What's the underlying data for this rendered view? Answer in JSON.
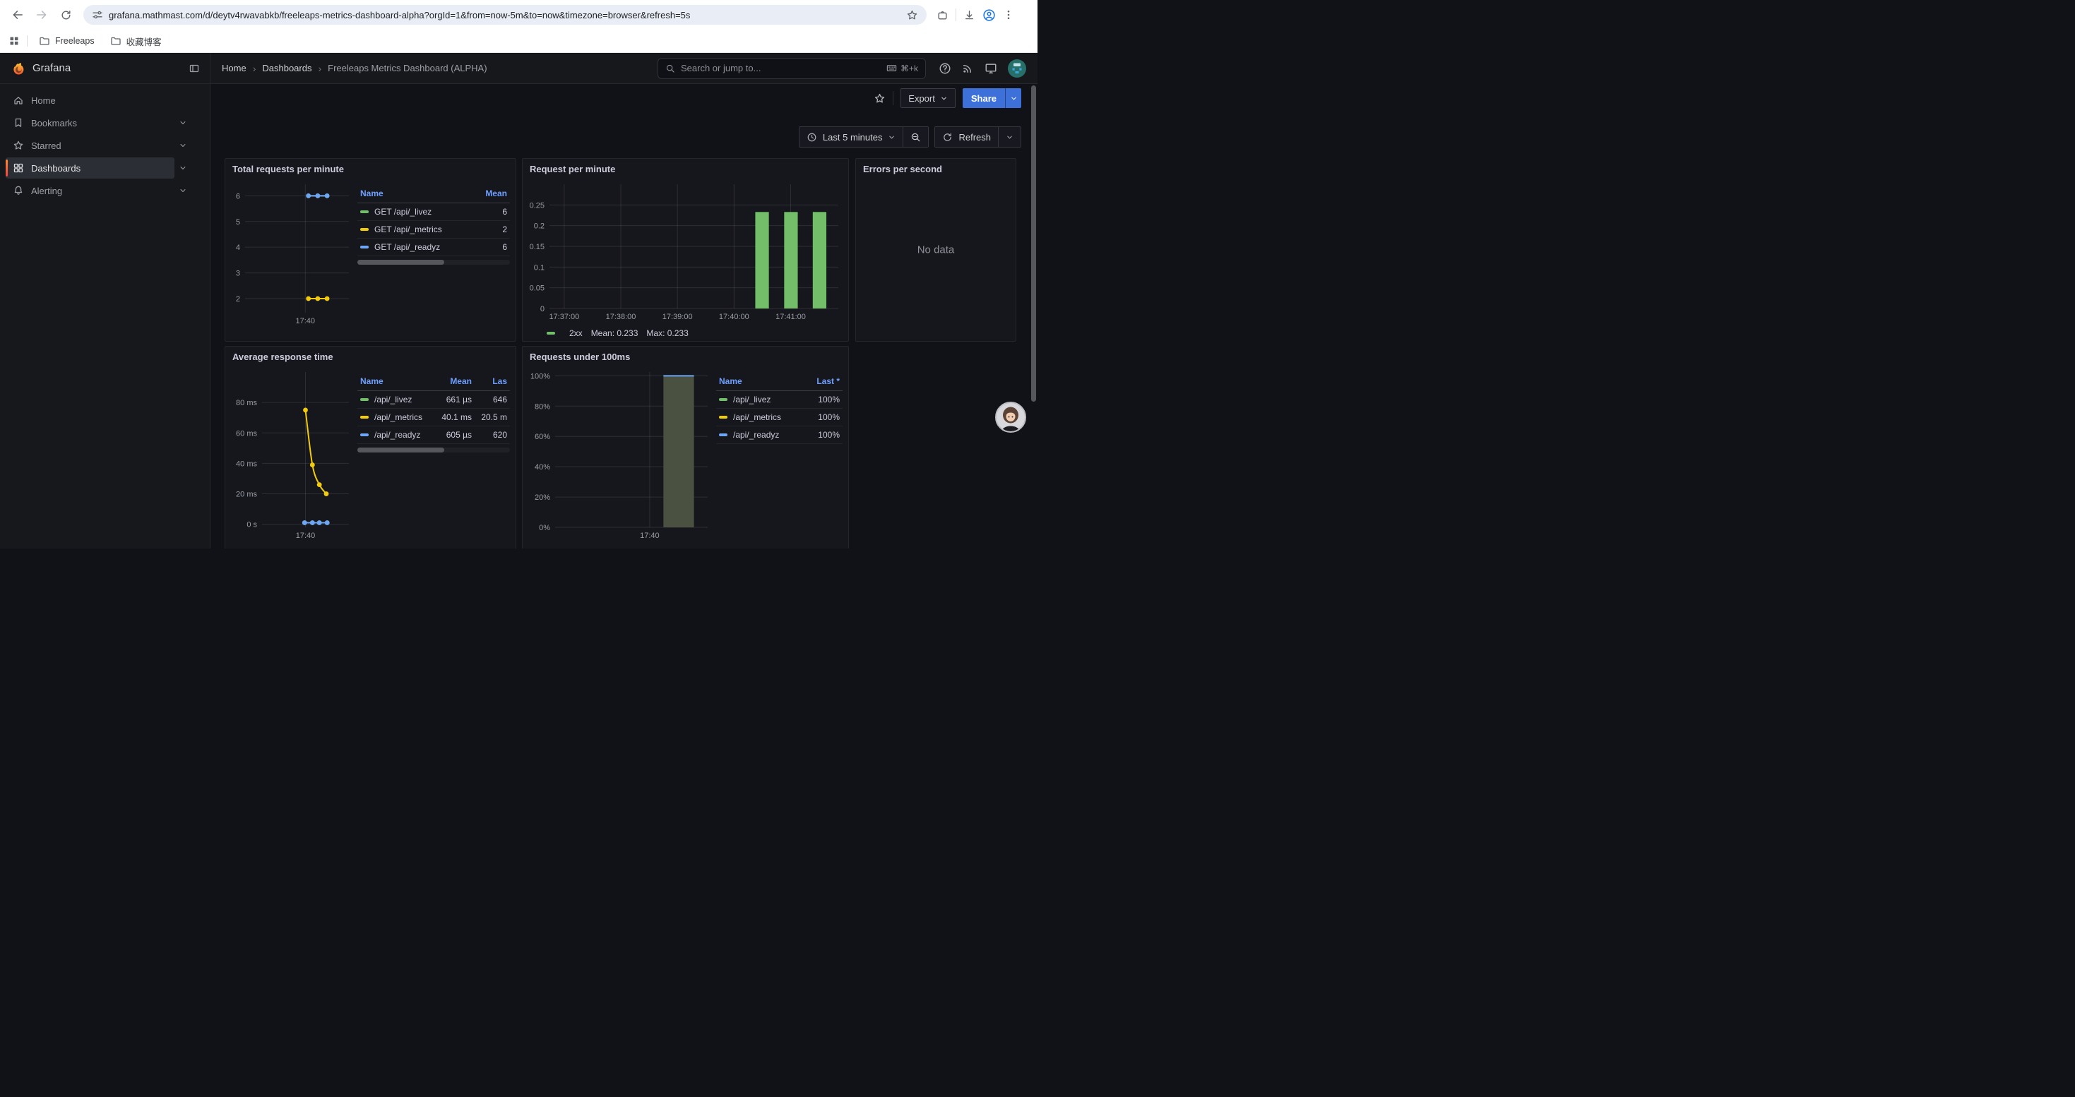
{
  "browser": {
    "url": "grafana.mathmast.com/d/deytv4rwavabkb/freeleaps-metrics-dashboard-alpha?orgId=1&from=now-5m&to=now&timezone=browser&refresh=5s",
    "bookmark_folders": [
      "Freeleaps",
      "收藏博客"
    ]
  },
  "header": {
    "brand": "Grafana",
    "breadcrumbs": [
      "Home",
      "Dashboards",
      "Freeleaps Metrics Dashboard (ALPHA)"
    ],
    "search": {
      "placeholder": "Search or jump to...",
      "shortcut": "⌘+k"
    }
  },
  "sidebar": {
    "items": [
      {
        "label": "Home",
        "expandable": false,
        "active": false
      },
      {
        "label": "Bookmarks",
        "expandable": true,
        "active": false
      },
      {
        "label": "Starred",
        "expandable": true,
        "active": false
      },
      {
        "label": "Dashboards",
        "expandable": true,
        "active": true
      },
      {
        "label": "Alerting",
        "expandable": true,
        "active": false
      }
    ]
  },
  "toolbar": {
    "export_label": "Export",
    "share_label": "Share"
  },
  "timebar": {
    "range_label": "Last 5 minutes",
    "refresh_label": "Refresh"
  },
  "colors": {
    "share_button": "#3d71d9",
    "series_green": "#73bf69",
    "series_yellow": "#f2cc0c",
    "series_blue": "#6ea6f5",
    "active_indicator": "#ff8833",
    "legend_header_blue": "#6e9fff"
  },
  "chart_data": [
    {
      "title": "Total requests per minute",
      "type": "line",
      "ylim": [
        1.45,
        6.45
      ],
      "grid": true,
      "yticks": [
        {
          "v": 6,
          "l": "6"
        },
        {
          "v": 5,
          "l": "5"
        },
        {
          "v": 4,
          "l": "4"
        },
        {
          "v": 3,
          "l": "3"
        },
        {
          "v": 2,
          "l": "2"
        }
      ],
      "xticks": [
        {
          "f": 0.58,
          "l": "17:40"
        }
      ],
      "series": [
        {
          "name": "GET /api/_livez",
          "color": "#73bf69",
          "mean": 6,
          "points": [
            [
              0.61,
              6
            ],
            [
              0.7,
              6
            ],
            [
              0.79,
              6
            ]
          ]
        },
        {
          "name": "GET /api/_metrics",
          "color": "#f2cc0c",
          "mean": 2,
          "points": [
            [
              0.61,
              2
            ],
            [
              0.7,
              2
            ],
            [
              0.79,
              2
            ]
          ]
        },
        {
          "name": "GET /api/_readyz",
          "color": "#6ea6f5",
          "mean": 6,
          "points": [
            [
              0.61,
              6
            ],
            [
              0.7,
              6
            ],
            [
              0.79,
              6
            ]
          ]
        }
      ],
      "legend": {
        "position": "right",
        "columns": [
          {
            "l": "Name",
            "align": "left"
          },
          {
            "l": "Mean",
            "align": "right"
          }
        ],
        "rows": [
          {
            "color": "#73bf69",
            "cells": [
              "GET /api/_livez",
              "6"
            ]
          },
          {
            "color": "#f2cc0c",
            "cells": [
              "GET /api/_metrics",
              "2"
            ]
          },
          {
            "color": "#6ea6f5",
            "cells": [
              "GET /api/_readyz",
              "6"
            ]
          }
        ],
        "scrollbar": true
      }
    },
    {
      "title": "Request per minute",
      "type": "bar",
      "ylim": [
        0,
        0.3
      ],
      "grid": true,
      "yticks": [
        {
          "v": 0.25,
          "l": "0.25"
        },
        {
          "v": 0.2,
          "l": "0.2"
        },
        {
          "v": 0.15,
          "l": "0.15"
        },
        {
          "v": 0.1,
          "l": "0.1"
        },
        {
          "v": 0.05,
          "l": "0.05"
        },
        {
          "v": 0,
          "l": "0"
        }
      ],
      "xticks": [
        {
          "f": 0.051,
          "l": "17:37:00"
        },
        {
          "f": 0.247,
          "l": "17:38:00"
        },
        {
          "f": 0.443,
          "l": "17:39:00"
        },
        {
          "f": 0.639,
          "l": "17:40:00"
        },
        {
          "f": 0.835,
          "l": "17:41:00"
        }
      ],
      "bar_color": "#73bf69",
      "bars": [
        {
          "f": 0.736,
          "w": 0.047,
          "v": 0.233
        },
        {
          "f": 0.836,
          "w": 0.047,
          "v": 0.233
        },
        {
          "f": 0.935,
          "w": 0.047,
          "v": 0.233
        }
      ],
      "legend_items": [
        {
          "color": "#73bf69",
          "name": "2xx",
          "stats": [
            "Mean: 0.233",
            "Max: 0.233"
          ]
        }
      ]
    },
    {
      "title": "Errors per second",
      "type": "none",
      "message": "No data"
    },
    {
      "title": "Average response time",
      "type": "line",
      "ylim": [
        -2,
        100
      ],
      "grid": true,
      "yticks": [
        {
          "v": 80,
          "l": "80 ms"
        },
        {
          "v": 60,
          "l": "60 ms"
        },
        {
          "v": 40,
          "l": "40 ms"
        },
        {
          "v": 20,
          "l": "20 ms"
        },
        {
          "v": 0,
          "l": "0 s"
        }
      ],
      "xticks": [
        {
          "f": 0.5,
          "l": "17:40"
        }
      ],
      "series": [
        {
          "name": "/api/_livez",
          "color": "#73bf69",
          "points": [
            [
              0.49,
              1
            ],
            [
              0.58,
              1
            ],
            [
              0.66,
              1
            ],
            [
              0.75,
              1
            ]
          ]
        },
        {
          "name": "/api/_metrics",
          "color": "#f2cc0c",
          "smooth": true,
          "points": [
            [
              0.5,
              75
            ],
            [
              0.58,
              39
            ],
            [
              0.66,
              26
            ],
            [
              0.74,
              20
            ]
          ]
        },
        {
          "name": "/api/_readyz",
          "color": "#6ea6f5",
          "points": [
            [
              0.49,
              1
            ],
            [
              0.58,
              1
            ],
            [
              0.66,
              1
            ],
            [
              0.75,
              1
            ]
          ]
        }
      ],
      "legend": {
        "position": "right",
        "columns": [
          {
            "l": "Name",
            "align": "left"
          },
          {
            "l": "Mean",
            "align": "right"
          },
          {
            "l": "Las",
            "align": "right"
          }
        ],
        "rows": [
          {
            "color": "#73bf69",
            "cells": [
              "/api/_livez",
              "661 µs",
              "646"
            ]
          },
          {
            "color": "#f2cc0c",
            "cells": [
              "/api/_metrics",
              "40.1 ms",
              "20.5 m"
            ]
          },
          {
            "color": "#6ea6f5",
            "cells": [
              "/api/_readyz",
              "605 µs",
              "620"
            ]
          }
        ],
        "scrollbar": true
      }
    },
    {
      "title": "Requests under 100ms",
      "type": "area-bar",
      "ylim": [
        0,
        102.5
      ],
      "grid": true,
      "yticks": [
        {
          "v": 100,
          "l": "100%"
        },
        {
          "v": 80,
          "l": "80%"
        },
        {
          "v": 60,
          "l": "60%"
        },
        {
          "v": 40,
          "l": "40%"
        },
        {
          "v": 20,
          "l": "20%"
        },
        {
          "v": 0,
          "l": "0%"
        }
      ],
      "xticks": [
        {
          "f": 0.62,
          "l": "17:40"
        }
      ],
      "bar": {
        "f0": 0.71,
        "f1": 0.91,
        "v": 100,
        "fill": "#4a5140",
        "top": "#6ea6f5"
      },
      "legend": {
        "position": "right",
        "columns": [
          {
            "l": "Name",
            "align": "left"
          },
          {
            "l": "Last *",
            "align": "right"
          }
        ],
        "rows": [
          {
            "color": "#73bf69",
            "cells": [
              "/api/_livez",
              "100%"
            ]
          },
          {
            "color": "#f2cc0c",
            "cells": [
              "/api/_metrics",
              "100%"
            ]
          },
          {
            "color": "#6ea6f5",
            "cells": [
              "/api/_readyz",
              "100%"
            ]
          }
        ],
        "scrollbar": false
      }
    }
  ]
}
